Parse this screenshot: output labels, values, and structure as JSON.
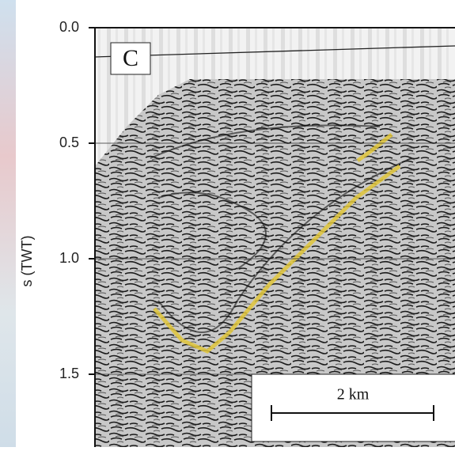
{
  "chart_data": {
    "type": "seismic-section",
    "panel_label": "C",
    "ylabel": "s (TWT)",
    "ylim": [
      0,
      1.8
    ],
    "yticks": [
      {
        "value": 0,
        "label": "0.0"
      },
      0.5,
      {
        "value": 1,
        "label": "1.0"
      },
      1.5
    ],
    "grid": true,
    "scale_bar_label": "2 km"
  }
}
